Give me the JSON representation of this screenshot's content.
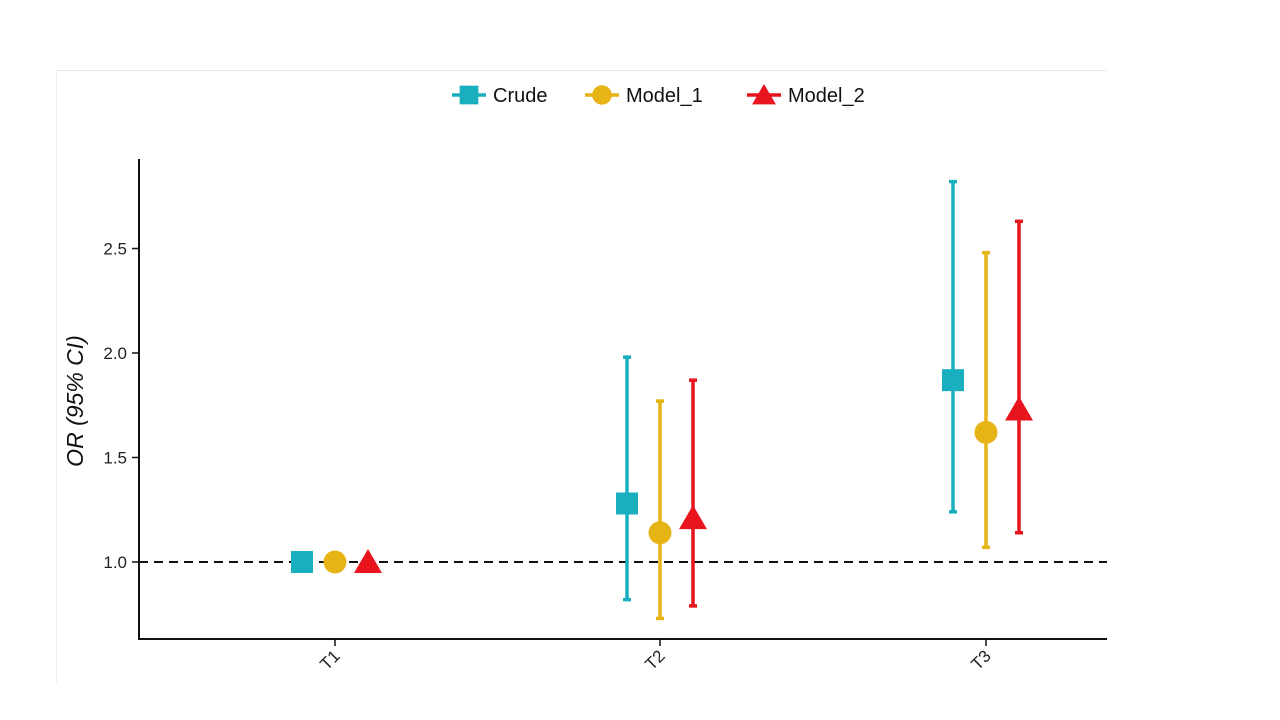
{
  "chart_data": {
    "type": "errorbar",
    "categories": [
      "T1",
      "T2",
      "T3"
    ],
    "ylabel": "OR (95% CI)",
    "xlabel": "",
    "ylim": [
      0.6,
      2.95
    ],
    "yticks": [
      1.0,
      1.5,
      2.0,
      2.5
    ],
    "ytick_labels": [
      "1.0",
      "1.5",
      "2.0",
      "2.5"
    ],
    "reference_line": 1.0,
    "legend_position": "top",
    "grid": false,
    "series": [
      {
        "name": "Crude",
        "color": "#1aafbf",
        "marker": "square",
        "values": [
          1.0,
          1.28,
          1.87
        ],
        "lower": [
          1.0,
          0.82,
          1.24
        ],
        "upper": [
          1.0,
          1.98,
          2.82
        ]
      },
      {
        "name": "Model_1",
        "color": "#e6b414",
        "marker": "circle",
        "values": [
          1.0,
          1.14,
          1.62
        ],
        "lower": [
          1.0,
          0.73,
          1.07
        ],
        "upper": [
          1.0,
          1.77,
          2.48
        ]
      },
      {
        "name": "Model_2",
        "color": "#e8141e",
        "marker": "triangle",
        "values": [
          1.0,
          1.21,
          1.73
        ],
        "lower": [
          1.0,
          0.79,
          1.14
        ],
        "upper": [
          1.0,
          1.87,
          2.63
        ]
      }
    ]
  }
}
